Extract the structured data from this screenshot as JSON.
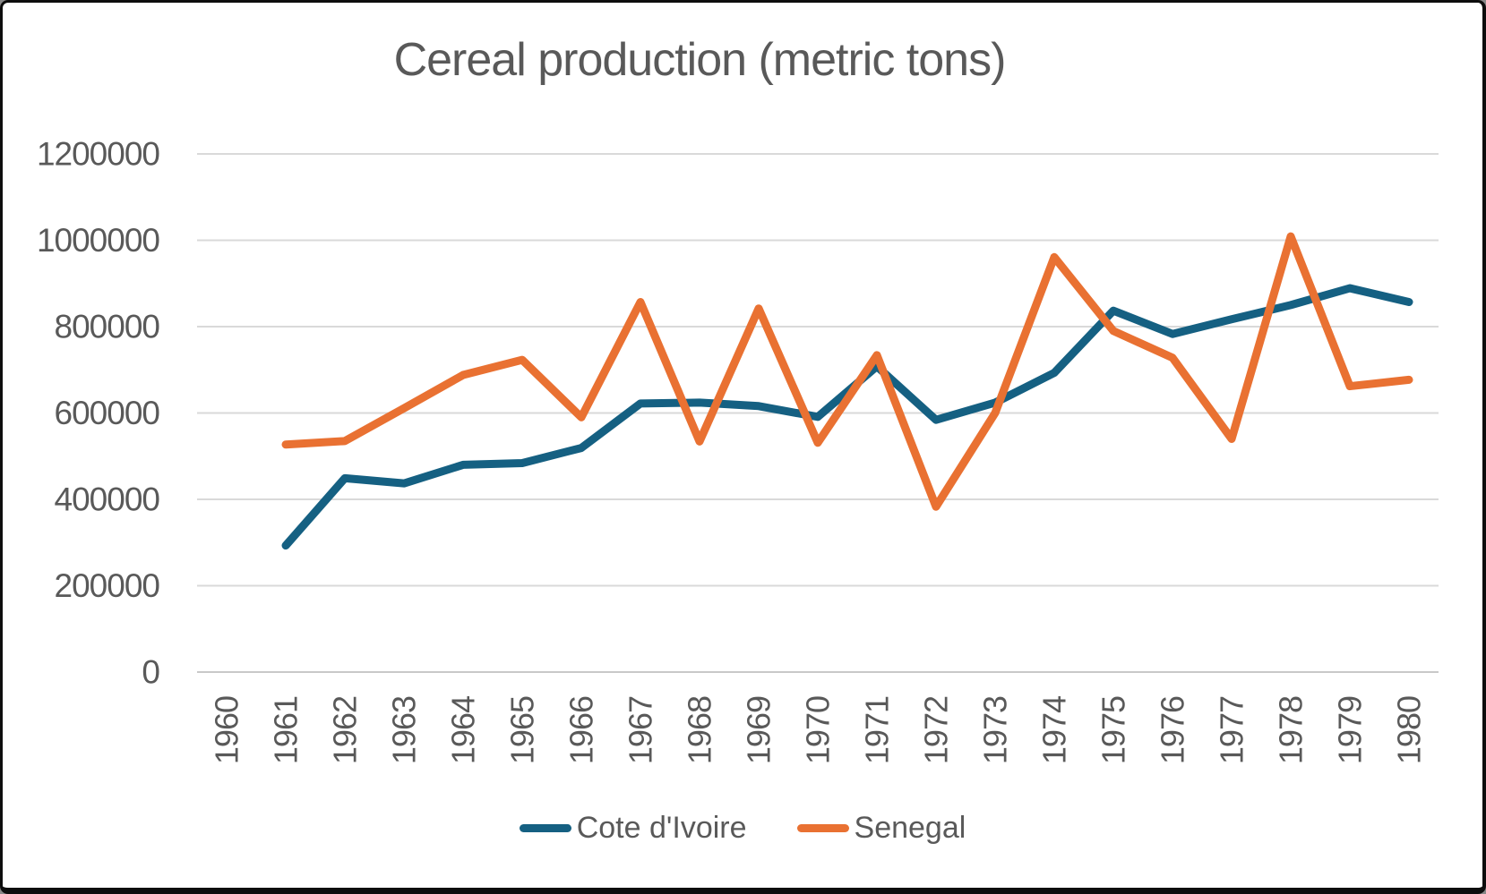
{
  "chart_data": {
    "type": "line",
    "title": "Cereal production (metric tons)",
    "categories": [
      "1960",
      "1961",
      "1962",
      "1963",
      "1964",
      "1965",
      "1966",
      "1967",
      "1968",
      "1969",
      "1970",
      "1971",
      "1972",
      "1973",
      "1974",
      "1975",
      "1976",
      "1977",
      "1978",
      "1979",
      "1980"
    ],
    "ylim": [
      0,
      1200000
    ],
    "y_ticks": [
      "0",
      "200000",
      "400000",
      "600000",
      "800000",
      "1000000",
      "1200000"
    ],
    "grid": true,
    "legend_position": "bottom",
    "x_tick_rotation_deg": -90,
    "series": [
      {
        "name": "Cote d'Ivoire",
        "color": "#156082",
        "values": [
          null,
          293000,
          449000,
          437000,
          480000,
          484000,
          519000,
          622000,
          624000,
          616000,
          591000,
          708000,
          584000,
          624000,
          693000,
          837000,
          783000,
          817000,
          850000,
          889000,
          857000
        ]
      },
      {
        "name": "Senegal",
        "color": "#E97132",
        "values": [
          null,
          527000,
          535000,
          611000,
          688000,
          723000,
          590000,
          857000,
          534000,
          842000,
          531000,
          734000,
          383000,
          600000,
          961000,
          790000,
          728000,
          540000,
          1009000,
          662000,
          677000
        ]
      }
    ],
    "colors": {
      "grid": "#D9D9D9",
      "axis_line": "#C9C9C9",
      "text": "#595959"
    }
  }
}
